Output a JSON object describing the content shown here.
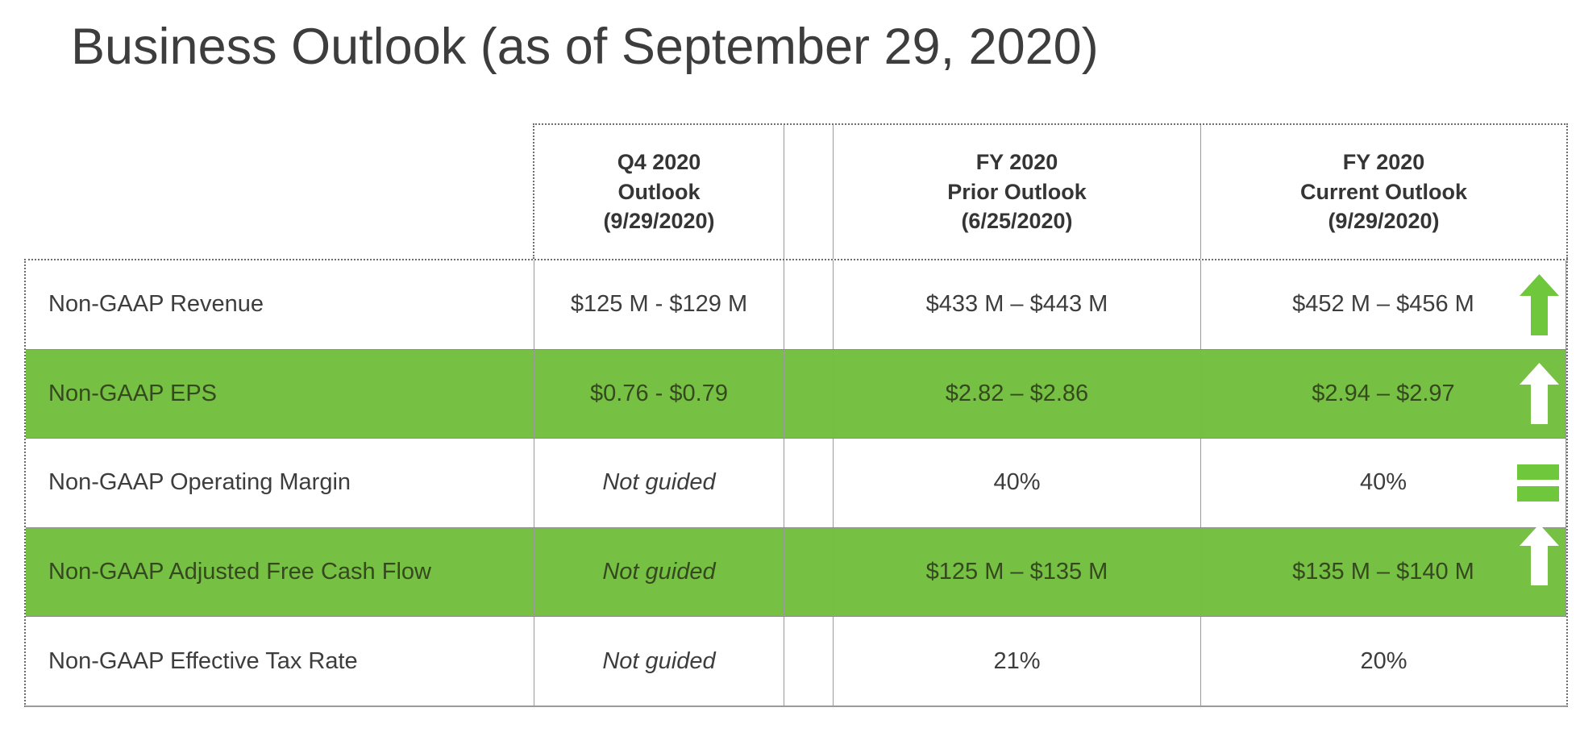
{
  "slide": {
    "title": "Business Outlook (as of September 29, 2020)"
  },
  "colors": {
    "row_highlight_green": "#76c043",
    "arrow_green": "#6fc83c",
    "arrow_white": "#ffffff",
    "title_text": "#3d3d3d",
    "body_text": "#3d3d3d",
    "green_row_text": "#35491f",
    "grid_line": "#9a9a9a",
    "dotted_border": "#6e6e6e"
  },
  "table": {
    "column_headers": [
      {
        "label": "Q4 2020\nOutlook\n(9/29/2020)"
      },
      {
        "label": ""
      },
      {
        "label": "FY 2020\nPrior Outlook\n(6/25/2020)"
      },
      {
        "label": "FY 2020\nCurrent Outlook\n(9/29/2020)"
      }
    ],
    "rows": [
      {
        "label": "Non-GAAP Revenue",
        "q4_outlook": "$125 M - $129 M",
        "fy_prior_outlook": "$433 M – $443 M",
        "fy_current_outlook": "$452 M – $456 M",
        "indicator": "up-arrow-green",
        "highlight": false,
        "q4_italic": false
      },
      {
        "label": "Non-GAAP EPS",
        "q4_outlook": "$0.76 - $0.79",
        "fy_prior_outlook": "$2.82 – $2.86",
        "fy_current_outlook": "$2.94 – $2.97",
        "indicator": "up-arrow-white",
        "highlight": true,
        "q4_italic": false
      },
      {
        "label": "Non-GAAP Operating Margin",
        "q4_outlook": "Not guided",
        "fy_prior_outlook": "40%",
        "fy_current_outlook": "40%",
        "indicator": "equals-green",
        "highlight": false,
        "q4_italic": true
      },
      {
        "label": "Non-GAAP Adjusted Free Cash Flow",
        "q4_outlook": "Not guided",
        "fy_prior_outlook": "$125 M – $135 M",
        "fy_current_outlook": "$135 M – $140 M",
        "indicator": "up-arrow-white",
        "highlight": true,
        "q4_italic": true
      },
      {
        "label": "Non-GAAP Effective Tax Rate",
        "q4_outlook": "Not guided",
        "fy_prior_outlook": "21%",
        "fy_current_outlook": "20%",
        "indicator": "none",
        "highlight": false,
        "q4_italic": true
      }
    ]
  }
}
